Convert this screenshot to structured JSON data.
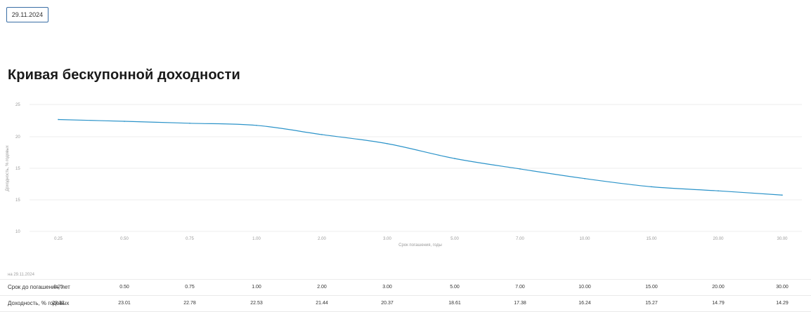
{
  "date_field": {
    "value": "29.11.2024"
  },
  "page": {
    "title": "Кривая бескупонной доходности"
  },
  "chart_data": {
    "type": "line",
    "ylabel": "Доходность, % годовых",
    "xlabel": "Срок погашения, годы",
    "y_ticks": [
      "25",
      "20",
      "15",
      "15",
      "10"
    ],
    "x": [
      0.25,
      0.5,
      0.75,
      1.0,
      2.0,
      3.0,
      5.0,
      7.0,
      10.0,
      15.0,
      20.0,
      30.0
    ],
    "x_tick_labels": [
      "0.25",
      "0.50",
      "0.75",
      "1.00",
      "2.00",
      "3.00",
      "5.00",
      "7.00",
      "10.00",
      "15.00",
      "20.00",
      "30.00"
    ],
    "series": [
      {
        "values": [
          23.22,
          23.01,
          22.78,
          22.53,
          21.44,
          20.37,
          18.61,
          17.38,
          16.24,
          15.27,
          14.79,
          14.29
        ]
      }
    ],
    "ylim": [
      10,
      25
    ],
    "grid": true,
    "colors": {
      "line": "#2b93c9",
      "grid": "#ececec"
    }
  },
  "footnote": "на 29.11.2024",
  "table": {
    "rows": [
      {
        "label": "Срок до погашения, лет",
        "values": [
          "0.25",
          "0.50",
          "0.75",
          "1.00",
          "2.00",
          "3.00",
          "5.00",
          "7.00",
          "10.00",
          "15.00",
          "20.00",
          "30.00"
        ]
      },
      {
        "label": "Доходность, % годовых",
        "values": [
          "23.22",
          "23.01",
          "22.78",
          "22.53",
          "21.44",
          "20.37",
          "18.61",
          "17.38",
          "16.24",
          "15.27",
          "14.79",
          "14.29"
        ]
      }
    ]
  }
}
